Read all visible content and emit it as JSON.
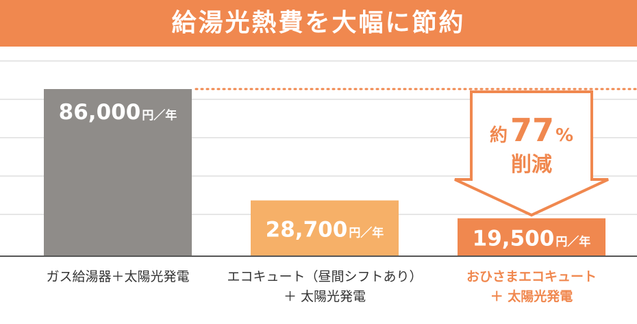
{
  "banner": {
    "title": "給湯光熱費を大幅に節約"
  },
  "colors": {
    "banner": "#f0884f",
    "gray": "#8f8c89",
    "light_orange": "#f6b068",
    "orange": "#f0884f",
    "grid": "#cccccc",
    "text": "#333333"
  },
  "chart_data": {
    "type": "bar",
    "categories": [
      {
        "line1": "ガス給湯器＋太陽光発電",
        "line2": ""
      },
      {
        "line1": "エコキュート（昼間シフトあり）",
        "line2": "＋ 太陽光発電"
      },
      {
        "line1": "おひさまエコキュート",
        "line2": "＋ 太陽光発電"
      }
    ],
    "values": [
      86000,
      28700,
      19500
    ],
    "value_labels": [
      "86,000",
      "28,700",
      "19,500"
    ],
    "unit_label": "円／年",
    "bar_colors": [
      "#8f8c89",
      "#f6b068",
      "#f0884f"
    ],
    "highlight_index": 2,
    "grid": true,
    "annotation": {
      "prefix": "約",
      "number": "77",
      "suffix": "%",
      "line2": "削減"
    }
  }
}
